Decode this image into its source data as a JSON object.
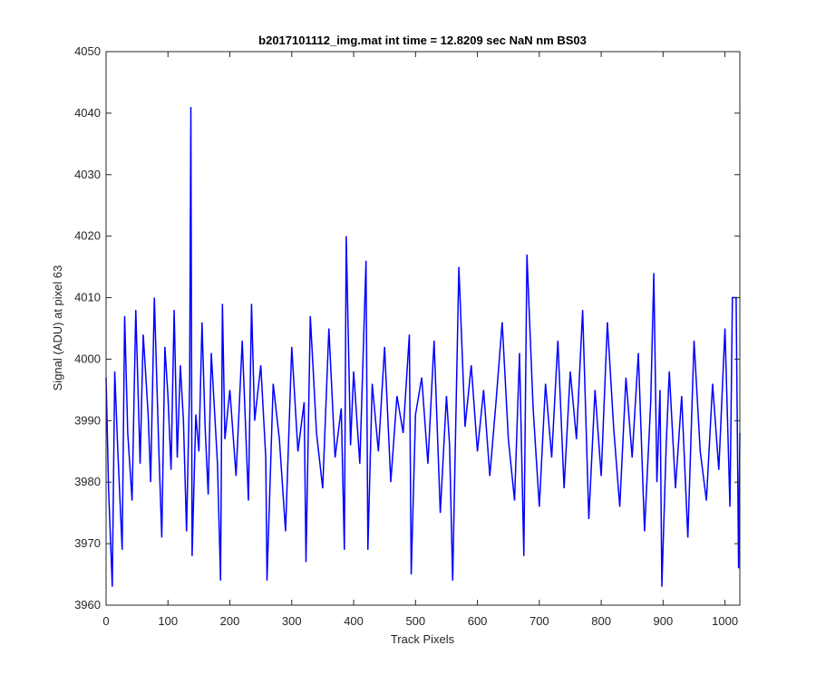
{
  "chart_data": {
    "type": "line",
    "title": "b2017101112_img.mat int time = 12.8209 sec  NaN nm BS03",
    "xlabel": "Track Pixels",
    "ylabel": "Signal (ADU) at pixel 63",
    "xlim": [
      0,
      1024
    ],
    "ylim": [
      3960,
      4050
    ],
    "xticks": [
      0,
      100,
      200,
      300,
      400,
      500,
      600,
      700,
      800,
      900,
      1000
    ],
    "yticks": [
      3960,
      3970,
      3980,
      3990,
      4000,
      4010,
      4020,
      4030,
      4040,
      4050
    ],
    "grid": false,
    "legend": "none",
    "series": [
      {
        "color": "#0000ff",
        "x": [
          0,
          4,
          10,
          14,
          19,
          26,
          30,
          35,
          42,
          48,
          55,
          60,
          68,
          72,
          78,
          85,
          90,
          95,
          100,
          105,
          110,
          115,
          120,
          125,
          130,
          135,
          137,
          139,
          145,
          150,
          155,
          160,
          165,
          170,
          175,
          180,
          185,
          188,
          192,
          200,
          210,
          220,
          230,
          235,
          240,
          250,
          258,
          260,
          270,
          280,
          290,
          300,
          310,
          320,
          323,
          330,
          340,
          350,
          360,
          370,
          380,
          385,
          388,
          395,
          400,
          410,
          420,
          423,
          430,
          440,
          450,
          460,
          470,
          480,
          490,
          493,
          500,
          510,
          520,
          530,
          540,
          550,
          555,
          560,
          570,
          580,
          590,
          600,
          610,
          620,
          630,
          640,
          650,
          660,
          668,
          675,
          680,
          690,
          700,
          710,
          720,
          730,
          740,
          750,
          760,
          770,
          780,
          790,
          800,
          810,
          820,
          830,
          840,
          850,
          860,
          870,
          880,
          885,
          890,
          895,
          898,
          905,
          910,
          920,
          930,
          940,
          950,
          960,
          970,
          980,
          990,
          1000,
          1008,
          1012,
          1018,
          1022,
          1024
        ],
        "y": [
          3997,
          3979,
          3963,
          3998,
          3985,
          3969,
          4007,
          3988,
          3977,
          4008,
          3983,
          4004,
          3991,
          3980,
          4010,
          3986,
          3971,
          4002,
          3994,
          3982,
          4008,
          3984,
          3999,
          3990,
          3972,
          3996,
          4041,
          3968,
          3991,
          3985,
          4006,
          3989,
          3978,
          4001,
          3992,
          3983,
          3964,
          4009,
          3987,
          3995,
          3981,
          4003,
          3977,
          4009,
          3990,
          3999,
          3984,
          3964,
          3996,
          3987,
          3972,
          4002,
          3985,
          3993,
          3967,
          4007,
          3988,
          3979,
          4005,
          3984,
          3992,
          3969,
          4020,
          3986,
          3998,
          3983,
          4016,
          3969,
          3996,
          3985,
          4002,
          3980,
          3994,
          3988,
          4004,
          3965,
          3991,
          3997,
          3983,
          4003,
          3975,
          3994,
          3986,
          3964,
          4015,
          3989,
          3999,
          3985,
          3995,
          3981,
          3993,
          4006,
          3987,
          3977,
          4001,
          3968,
          4017,
          3992,
          3976,
          3996,
          3984,
          4003,
          3979,
          3998,
          3987,
          4008,
          3974,
          3995,
          3981,
          4006,
          3989,
          3976,
          3997,
          3984,
          4001,
          3972,
          3993,
          4014,
          3980,
          3995,
          3963,
          3986,
          3998,
          3979,
          3994,
          3971,
          4003,
          3985,
          3977,
          3996,
          3982,
          4005,
          3976,
          4010,
          4010,
          3966,
          3988
        ]
      }
    ]
  }
}
